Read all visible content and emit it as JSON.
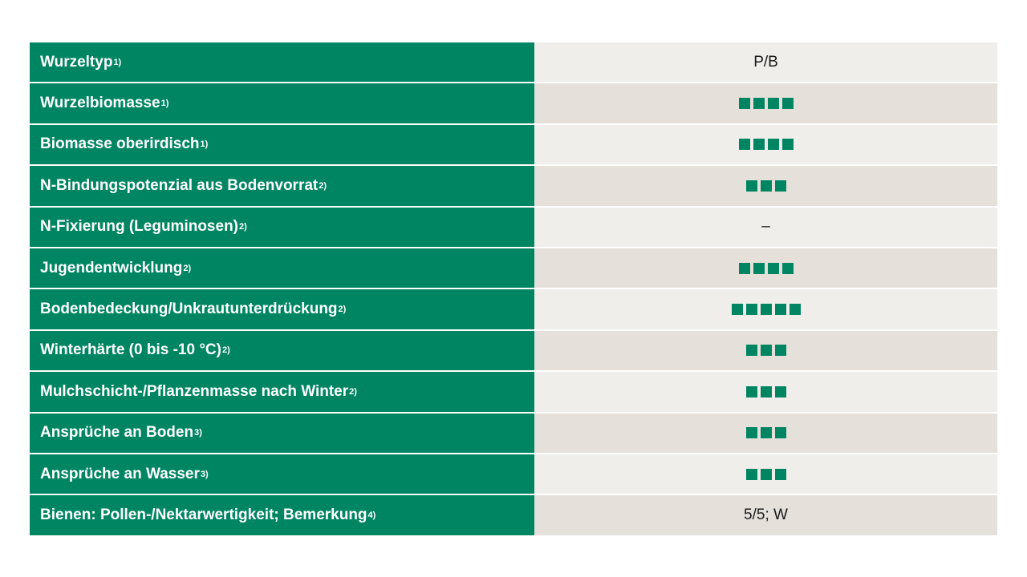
{
  "colors": {
    "header_green": "#008563",
    "row_light": "#f0eeea",
    "row_dark": "#e5e1da",
    "rating_square": "#008563"
  },
  "rows": [
    {
      "label": "Wurzeltyp",
      "sup": "1)",
      "value_text": "P/B",
      "rating": 0
    },
    {
      "label": "Wurzelbiomasse",
      "sup": "1)",
      "value_text": "",
      "rating": 4
    },
    {
      "label": "Biomasse oberirdisch",
      "sup": "1)",
      "value_text": "",
      "rating": 4
    },
    {
      "label": "N-Bindungspotenzial aus Bodenvorrat",
      "sup": "2)",
      "value_text": "",
      "rating": 3
    },
    {
      "label": "N-Fixierung (Leguminosen)",
      "sup": "2)",
      "value_text": "–",
      "rating": 0
    },
    {
      "label": "Jugendentwicklung",
      "sup": "2)",
      "value_text": "",
      "rating": 4
    },
    {
      "label": "Bodenbedeckung/Unkrautunterdrückung",
      "sup": "2)",
      "value_text": "",
      "rating": 5
    },
    {
      "label": "Winterhärte (0 bis -10 °C)",
      "sup": "2)",
      "value_text": "",
      "rating": 3
    },
    {
      "label": "Mulchschicht-/Pflanzenmasse nach Winter",
      "sup": "2)",
      "value_text": "",
      "rating": 3
    },
    {
      "label": "Ansprüche an Boden",
      "sup": "3)",
      "value_text": "",
      "rating": 3
    },
    {
      "label": "Ansprüche an Wasser",
      "sup": "3)",
      "value_text": "",
      "rating": 3
    },
    {
      "label": "Bienen: Pollen-/Nektarwertigkeit; Bemerkung",
      "sup": "4)",
      "value_text": "5/5; W",
      "rating": 0
    }
  ]
}
